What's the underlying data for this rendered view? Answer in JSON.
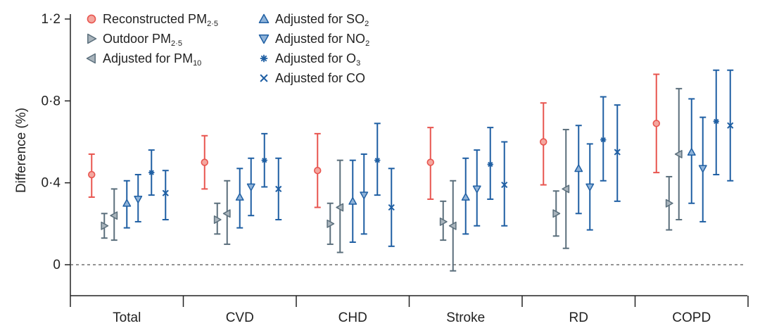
{
  "chart_data": {
    "type": "scatter",
    "subtype": "point-with-error-bars",
    "title": "",
    "ylabel": "Difference (%)",
    "xlabel": "",
    "ylim": [
      -0.2,
      1.2
    ],
    "yticks": [
      {
        "value": 0,
        "label": "0"
      },
      {
        "value": 0.4,
        "label": "0·4"
      },
      {
        "value": 0.8,
        "label": "0·8"
      },
      {
        "value": 1.2,
        "label": "1·2"
      }
    ],
    "reference_line": {
      "value": 0,
      "style": "dashed"
    },
    "grid": false,
    "legend_placement": "top-left",
    "categories": [
      "Total",
      "CVD",
      "CHD",
      "Stroke",
      "RD",
      "COPD"
    ],
    "series": [
      {
        "key": "reconstructed",
        "legend_main": "Reconstructed PM",
        "legend_sub": "2·5",
        "marker": "circle",
        "color": "#e8554f",
        "fill": "#f4a79f",
        "points": [
          {
            "value": 0.44,
            "low": 0.33,
            "high": 0.54
          },
          {
            "value": 0.5,
            "low": 0.37,
            "high": 0.63
          },
          {
            "value": 0.46,
            "low": 0.28,
            "high": 0.64
          },
          {
            "value": 0.5,
            "low": 0.32,
            "high": 0.67
          },
          {
            "value": 0.6,
            "low": 0.39,
            "high": 0.79
          },
          {
            "value": 0.69,
            "low": 0.45,
            "high": 0.93
          }
        ]
      },
      {
        "key": "outdoor",
        "legend_main": "Outdoor PM",
        "legend_sub": "2·5",
        "marker": "triangle-right",
        "color": "#5b6f7c",
        "fill": "#a9b4bc",
        "points": [
          {
            "value": 0.19,
            "low": 0.13,
            "high": 0.25
          },
          {
            "value": 0.22,
            "low": 0.15,
            "high": 0.3
          },
          {
            "value": 0.2,
            "low": 0.1,
            "high": 0.3
          },
          {
            "value": 0.21,
            "low": 0.12,
            "high": 0.31
          },
          {
            "value": 0.25,
            "low": 0.14,
            "high": 0.36
          },
          {
            "value": 0.3,
            "low": 0.17,
            "high": 0.43
          }
        ]
      },
      {
        "key": "pm10",
        "legend_main": "Adjusted for PM",
        "legend_sub": "10",
        "marker": "triangle-left",
        "color": "#5b6f7c",
        "fill": "#a9b4bc",
        "points": [
          {
            "value": 0.24,
            "low": 0.12,
            "high": 0.37
          },
          {
            "value": 0.25,
            "low": 0.1,
            "high": 0.41
          },
          {
            "value": 0.28,
            "low": 0.06,
            "high": 0.51
          },
          {
            "value": 0.19,
            "low": -0.03,
            "high": 0.41
          },
          {
            "value": 0.37,
            "low": 0.08,
            "high": 0.66
          },
          {
            "value": 0.54,
            "low": 0.22,
            "high": 0.86
          }
        ]
      },
      {
        "key": "so2",
        "legend_main": "Adjusted for SO",
        "legend_sub": "2",
        "marker": "triangle-up",
        "color": "#1f5fa3",
        "fill": "#8fb3d9",
        "points": [
          {
            "value": 0.3,
            "low": 0.18,
            "high": 0.41
          },
          {
            "value": 0.33,
            "low": 0.18,
            "high": 0.47
          },
          {
            "value": 0.31,
            "low": 0.11,
            "high": 0.51
          },
          {
            "value": 0.33,
            "low": 0.15,
            "high": 0.52
          },
          {
            "value": 0.47,
            "low": 0.25,
            "high": 0.68
          },
          {
            "value": 0.55,
            "low": 0.3,
            "high": 0.81
          }
        ]
      },
      {
        "key": "no2",
        "legend_main": "Adjusted for NO",
        "legend_sub": "2",
        "marker": "triangle-down",
        "color": "#1f5fa3",
        "fill": "#8fb3d9",
        "points": [
          {
            "value": 0.32,
            "low": 0.21,
            "high": 0.44
          },
          {
            "value": 0.38,
            "low": 0.24,
            "high": 0.52
          },
          {
            "value": 0.34,
            "low": 0.15,
            "high": 0.54
          },
          {
            "value": 0.37,
            "low": 0.19,
            "high": 0.56
          },
          {
            "value": 0.38,
            "low": 0.17,
            "high": 0.59
          },
          {
            "value": 0.47,
            "low": 0.21,
            "high": 0.72
          }
        ]
      },
      {
        "key": "o3",
        "legend_main": "Adjusted for O",
        "legend_sub": "3",
        "marker": "asterisk",
        "color": "#1f5fa3",
        "fill": "#1f5fa3",
        "points": [
          {
            "value": 0.45,
            "low": 0.34,
            "high": 0.56
          },
          {
            "value": 0.51,
            "low": 0.38,
            "high": 0.64
          },
          {
            "value": 0.51,
            "low": 0.34,
            "high": 0.69
          },
          {
            "value": 0.49,
            "low": 0.32,
            "high": 0.67
          },
          {
            "value": 0.61,
            "low": 0.41,
            "high": 0.82
          },
          {
            "value": 0.7,
            "low": 0.44,
            "high": 0.95
          }
        ]
      },
      {
        "key": "co",
        "legend_main": "Adjusted for CO",
        "legend_sub": "",
        "marker": "x",
        "color": "#1f5fa3",
        "fill": "#1f5fa3",
        "points": [
          {
            "value": 0.35,
            "low": 0.22,
            "high": 0.46
          },
          {
            "value": 0.37,
            "low": 0.22,
            "high": 0.52
          },
          {
            "value": 0.28,
            "low": 0.09,
            "high": 0.47
          },
          {
            "value": 0.39,
            "low": 0.19,
            "high": 0.6
          },
          {
            "value": 0.55,
            "low": 0.31,
            "high": 0.78
          },
          {
            "value": 0.68,
            "low": 0.41,
            "high": 0.95
          }
        ]
      }
    ]
  }
}
